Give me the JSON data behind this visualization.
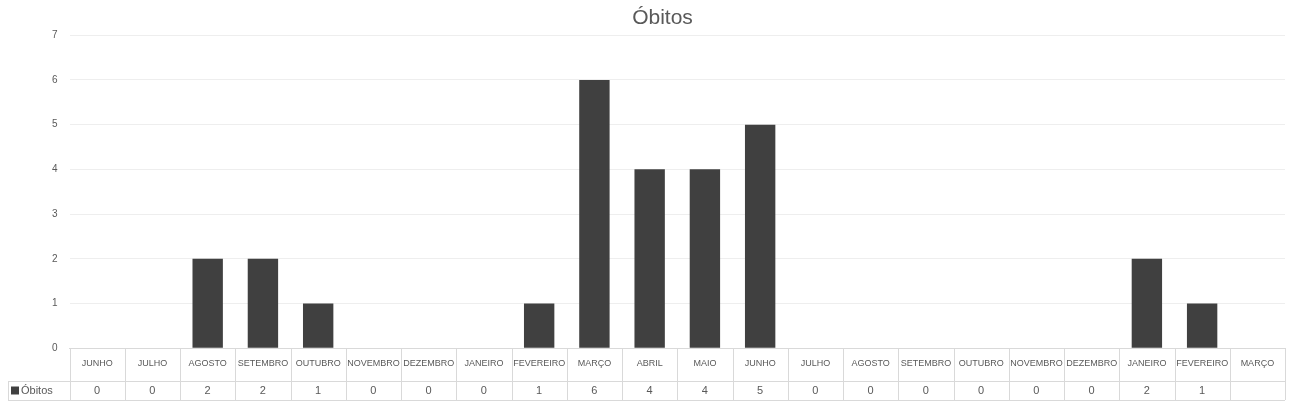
{
  "chart_data": {
    "type": "bar",
    "title": "Óbitos",
    "categories": [
      "JUNHO",
      "JULHO",
      "AGOSTO",
      "SETEMBRO",
      "OUTUBRO",
      "NOVEMBRO",
      "DEZEMBRO",
      "JANEIRO",
      "FEVEREIRO",
      "MARÇO",
      "ABRIL",
      "MAIO",
      "JUNHO",
      "JULHO",
      "AGOSTO",
      "SETEMBRO",
      "OUTUBRO",
      "NOVEMBRO",
      "DEZEMBRO",
      "JANEIRO",
      "FEVEREIRO",
      "MARÇO"
    ],
    "series": [
      {
        "name": "Óbitos",
        "color": "#404040",
        "values": [
          0,
          0,
          2,
          2,
          1,
          0,
          0,
          0,
          1,
          6,
          4,
          4,
          5,
          0,
          0,
          0,
          0,
          0,
          0,
          2,
          1,
          null
        ]
      }
    ],
    "ylim": [
      0,
      7
    ],
    "yticks": [
      0,
      1,
      2,
      3,
      4,
      5,
      6,
      7
    ],
    "grid": "y",
    "legend": "bottom",
    "data_labels": true
  }
}
